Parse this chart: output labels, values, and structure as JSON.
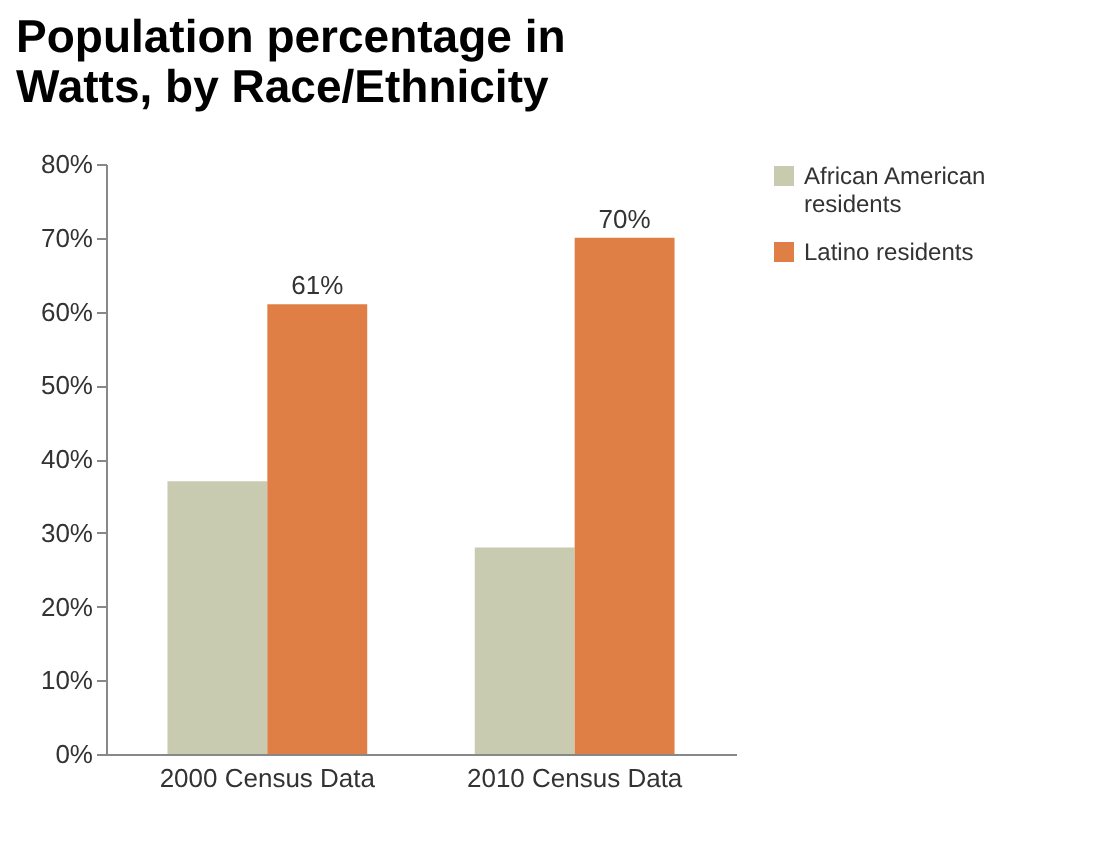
{
  "chart_data": {
    "type": "bar",
    "title": "Population percentage in Watts, by Race/Ethnicity",
    "categories": [
      "2000 Census Data",
      "2010 Census Data"
    ],
    "series": [
      {
        "name": "African American residents",
        "color": "#c9cbb0",
        "values": [
          37,
          28
        ]
      },
      {
        "name": "Latino residents",
        "color": "#e07f45",
        "values": [
          61,
          70
        ],
        "value_labels": [
          "61%",
          "70%"
        ]
      }
    ],
    "ylim": [
      0,
      80
    ],
    "yticks": [
      {
        "value": 0,
        "label": "0%"
      },
      {
        "value": 10,
        "label": "10%"
      },
      {
        "value": 20,
        "label": "20%"
      },
      {
        "value": 30,
        "label": "30%"
      },
      {
        "value": 40,
        "label": "40%"
      },
      {
        "value": 50,
        "label": "50%"
      },
      {
        "value": 60,
        "label": "60%"
      },
      {
        "value": 70,
        "label": "70%"
      },
      {
        "value": 80,
        "label": "80%"
      }
    ],
    "grid": false,
    "legend": "right"
  }
}
